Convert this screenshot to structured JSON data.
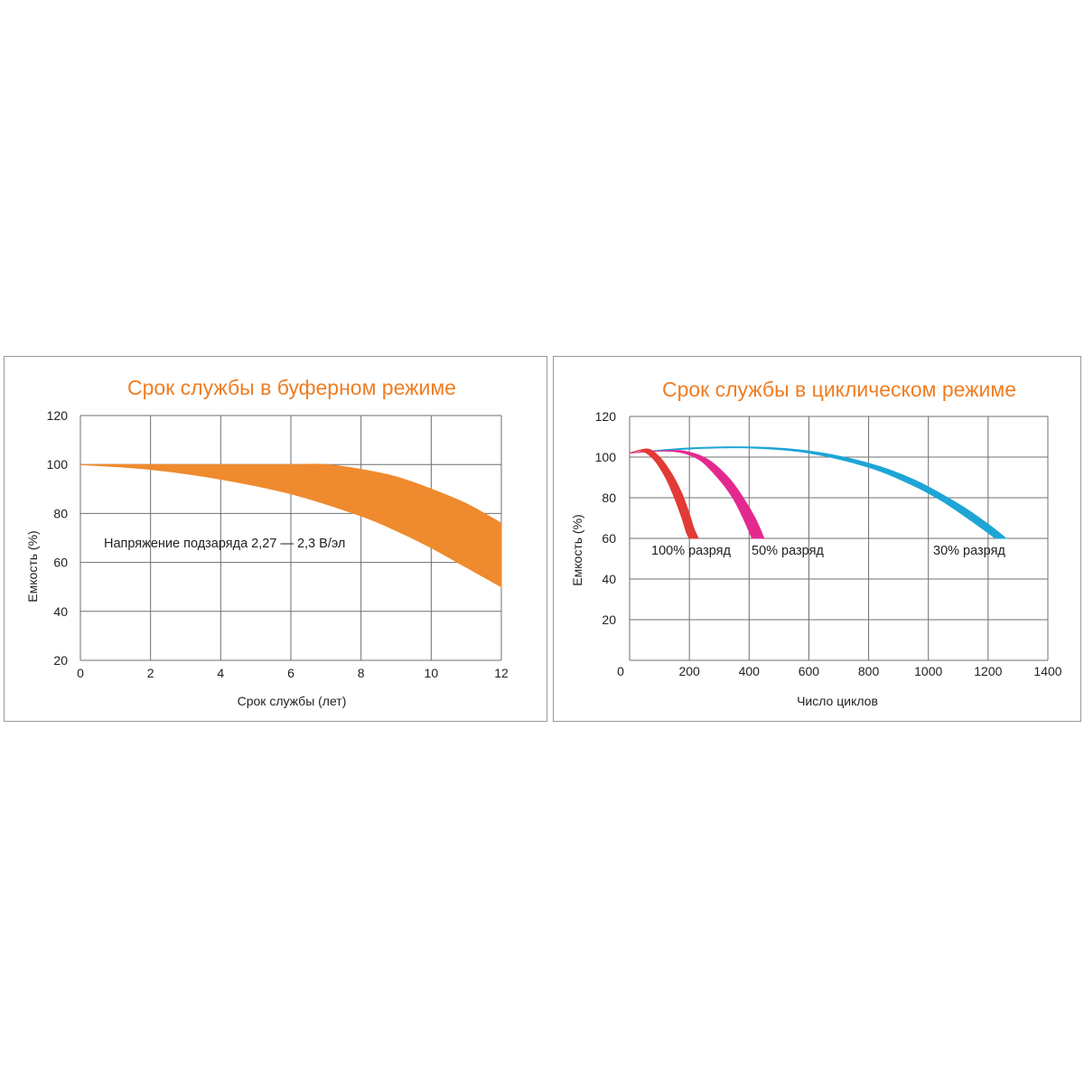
{
  "chart_data": [
    {
      "type": "area",
      "title": "Срок службы в буферном режиме",
      "xlabel": "Срок службы (лет)",
      "ylabel": "Емкость (%)",
      "xlim": [
        0,
        12
      ],
      "ylim": [
        20,
        120
      ],
      "x_ticks": [
        "0",
        "2",
        "4",
        "6",
        "8",
        "10",
        "12"
      ],
      "y_ticks": [
        "120",
        "100",
        "80",
        "60",
        "40",
        "20"
      ],
      "grid": true,
      "annotations": [
        "Напряжение подзаряда 2,27 — 2,3 В/эл"
      ],
      "series": [
        {
          "color": "#ef8a2e",
          "upper": [
            [
              0,
              100
            ],
            [
              2,
              100
            ],
            [
              4,
              100
            ],
            [
              6,
              100
            ],
            [
              7,
              100
            ],
            [
              8,
              98
            ],
            [
              9,
              95
            ],
            [
              10,
              90
            ],
            [
              11,
              84
            ],
            [
              12,
              76
            ]
          ],
          "lower": [
            [
              0,
              100
            ],
            [
              2,
              98
            ],
            [
              4,
              94
            ],
            [
              6,
              88
            ],
            [
              8,
              79
            ],
            [
              9,
              73
            ],
            [
              10,
              66
            ],
            [
              11,
              58
            ],
            [
              12,
              50
            ]
          ]
        }
      ]
    },
    {
      "type": "area",
      "title": "Срок службы в циклическом режиме",
      "xlabel": "Число циклов",
      "ylabel": "Емкость (%)",
      "xlim": [
        0,
        1400
      ],
      "ylim": [
        0,
        120
      ],
      "x_ticks": [
        "0",
        "200",
        "400",
        "600",
        "800",
        "1000",
        "1200",
        "1400"
      ],
      "y_ticks": [
        "120",
        "100",
        "80",
        "60",
        "40",
        "20"
      ],
      "grid": true,
      "series": [
        {
          "name": "100% разряд",
          "color": "#e23a36",
          "upper": [
            [
              0,
              102
            ],
            [
              60,
              104
            ],
            [
              100,
              100
            ],
            [
              140,
              92
            ],
            [
              175,
              82
            ],
            [
              200,
              72
            ],
            [
              215,
              65
            ],
            [
              230,
              60
            ]
          ],
          "lower": [
            [
              0,
              102
            ],
            [
              40,
              103
            ],
            [
              80,
              99
            ],
            [
              120,
              90
            ],
            [
              150,
              80
            ],
            [
              175,
              70
            ],
            [
              190,
              63
            ],
            [
              200,
              60
            ]
          ]
        },
        {
          "name": "50% разряд",
          "color": "#e4298e",
          "upper": [
            [
              0,
              102
            ],
            [
              100,
              103
            ],
            [
              180,
              103
            ],
            [
              260,
              99
            ],
            [
              330,
              90
            ],
            [
              380,
              80
            ],
            [
              420,
              70
            ],
            [
              450,
              60
            ]
          ],
          "lower": [
            [
              0,
              102
            ],
            [
              100,
              103
            ],
            [
              180,
              102
            ],
            [
              240,
              98
            ],
            [
              300,
              89
            ],
            [
              345,
              80
            ],
            [
              380,
              70
            ],
            [
              410,
              60
            ]
          ]
        },
        {
          "name": "30% разряд",
          "color": "#1ea5d6",
          "upper": [
            [
              0,
              102
            ],
            [
              200,
              104.5
            ],
            [
              400,
              105
            ],
            [
              600,
              103
            ],
            [
              800,
              97
            ],
            [
              950,
              89
            ],
            [
              1100,
              77
            ],
            [
              1200,
              67
            ],
            [
              1260,
              60
            ]
          ],
          "lower": [
            [
              0,
              102
            ],
            [
              200,
              104
            ],
            [
              400,
              104.5
            ],
            [
              600,
              102
            ],
            [
              800,
              95
            ],
            [
              950,
              86
            ],
            [
              1050,
              78
            ],
            [
              1150,
              68
            ],
            [
              1225,
              60
            ]
          ]
        }
      ]
    }
  ]
}
